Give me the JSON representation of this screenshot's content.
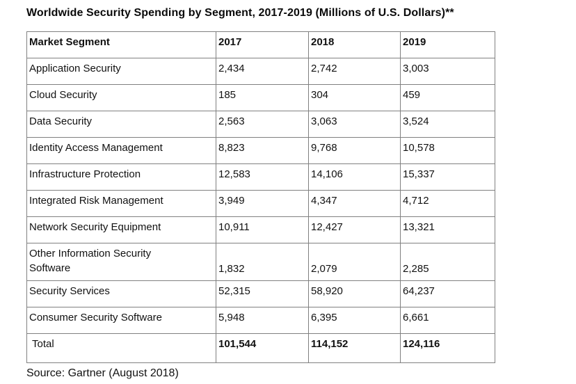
{
  "title": "Worldwide Security Spending by Segment, 2017-2019 (Millions of U.S. Dollars)**",
  "source": "Source: Gartner (August 2018)",
  "table": {
    "columns": [
      "Market Segment",
      "2017",
      "2018",
      "2019"
    ],
    "rows": [
      {
        "segment": "Application Security",
        "values": [
          "2,434",
          "2,742",
          "3,003"
        ]
      },
      {
        "segment": "Cloud Security",
        "values": [
          "185",
          "304",
          "459"
        ]
      },
      {
        "segment": "Data Security",
        "values": [
          "2,563",
          "3,063",
          "3,524"
        ]
      },
      {
        "segment": "Identity Access Management",
        "values": [
          "8,823",
          "9,768",
          "10,578"
        ]
      },
      {
        "segment": "Infrastructure Protection",
        "values": [
          "12,583",
          "14,106",
          "15,337"
        ]
      },
      {
        "segment": "Integrated Risk Management",
        "values": [
          "3,949",
          "4,347",
          "4,712"
        ]
      },
      {
        "segment": "Network Security Equipment",
        "values": [
          "10,911",
          "12,427",
          "13,321"
        ]
      },
      {
        "segment": "Other Information Security Software",
        "values": [
          "1,832",
          "2,079",
          "2,285"
        ],
        "two_line": true
      },
      {
        "segment": "Security Services",
        "values": [
          "52,315",
          "58,920",
          "64,237"
        ]
      },
      {
        "segment": "Consumer Security Software",
        "values": [
          "5,948",
          "6,395",
          "6,661"
        ]
      }
    ],
    "total": {
      "label": "Total",
      "values": [
        "101,544",
        "114,152",
        "124,116"
      ]
    }
  },
  "chart_data": {
    "type": "table",
    "title": "Worldwide Security Spending by Segment, 2017-2019 (Millions of U.S. Dollars)**",
    "columns": [
      "Market Segment",
      "2017",
      "2018",
      "2019"
    ],
    "categories": [
      "Application Security",
      "Cloud Security",
      "Data Security",
      "Identity Access Management",
      "Infrastructure Protection",
      "Integrated Risk Management",
      "Network Security Equipment",
      "Other Information Security Software",
      "Security Services",
      "Consumer Security Software"
    ],
    "series": [
      {
        "name": "2017",
        "values": [
          2434,
          185,
          2563,
          8823,
          12583,
          3949,
          10911,
          1832,
          52315,
          5948
        ]
      },
      {
        "name": "2018",
        "values": [
          2742,
          304,
          3063,
          9768,
          14106,
          4347,
          12427,
          2079,
          58920,
          6395
        ]
      },
      {
        "name": "2019",
        "values": [
          3003,
          459,
          3524,
          10578,
          15337,
          4712,
          13321,
          2285,
          64237,
          6661
        ]
      }
    ],
    "totals": {
      "2017": 101544,
      "2018": 114152,
      "2019": 124116
    },
    "source": "Source: Gartner (August 2018)",
    "units": "Millions of U.S. Dollars"
  }
}
